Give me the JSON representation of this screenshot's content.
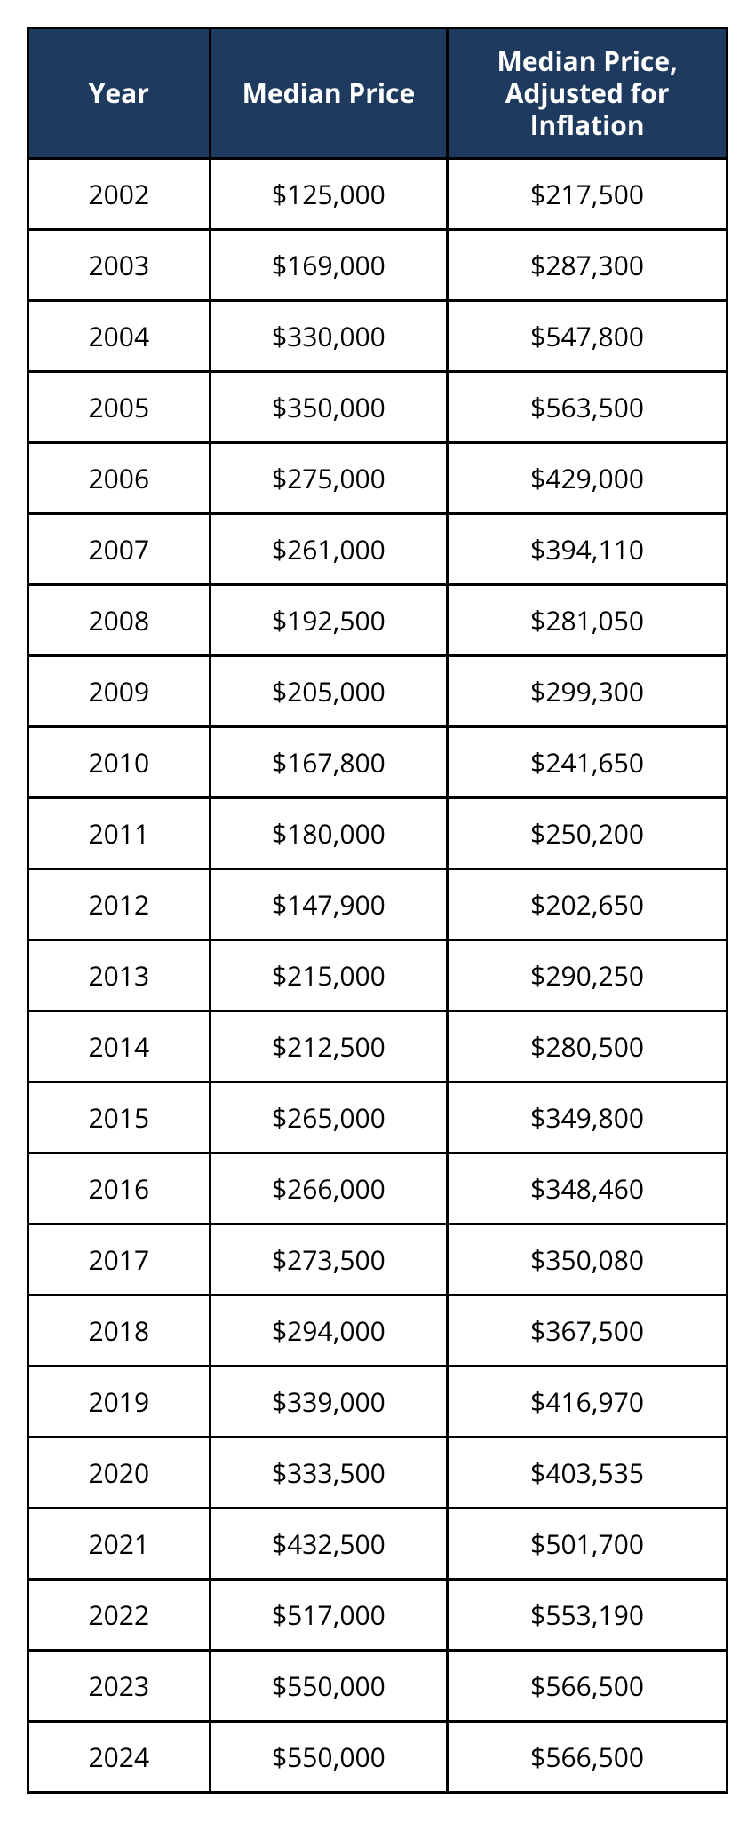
{
  "table": {
    "type": "table",
    "header_bg": "#1e3a5f",
    "header_color": "#ffffff",
    "border_color": "#000000",
    "cell_bg": "#ffffff",
    "cell_color": "#000000",
    "header_fontsize": 30,
    "cell_fontsize": 30,
    "columns": [
      {
        "label": "Year",
        "width_pct": 26,
        "align": "center"
      },
      {
        "label": "Median Price",
        "width_pct": 34,
        "align": "center"
      },
      {
        "label": "Median Price, Adjusted for Inflation",
        "width_pct": 40,
        "align": "center"
      }
    ],
    "rows": [
      [
        "2002",
        "$125,000",
        "$217,500"
      ],
      [
        "2003",
        "$169,000",
        "$287,300"
      ],
      [
        "2004",
        "$330,000",
        "$547,800"
      ],
      [
        "2005",
        "$350,000",
        "$563,500"
      ],
      [
        "2006",
        "$275,000",
        "$429,000"
      ],
      [
        "2007",
        "$261,000",
        "$394,110"
      ],
      [
        "2008",
        "$192,500",
        "$281,050"
      ],
      [
        "2009",
        "$205,000",
        "$299,300"
      ],
      [
        "2010",
        "$167,800",
        "$241,650"
      ],
      [
        "2011",
        "$180,000",
        "$250,200"
      ],
      [
        "2012",
        "$147,900",
        "$202,650"
      ],
      [
        "2013",
        "$215,000",
        "$290,250"
      ],
      [
        "2014",
        "$212,500",
        "$280,500"
      ],
      [
        "2015",
        "$265,000",
        "$349,800"
      ],
      [
        "2016",
        "$266,000",
        "$348,460"
      ],
      [
        "2017",
        "$273,500",
        "$350,080"
      ],
      [
        "2018",
        "$294,000",
        "$367,500"
      ],
      [
        "2019",
        "$339,000",
        "$416,970"
      ],
      [
        "2020",
        "$333,500",
        "$403,535"
      ],
      [
        "2021",
        "$432,500",
        "$501,700"
      ],
      [
        "2022",
        "$517,000",
        "$553,190"
      ],
      [
        "2023",
        "$550,000",
        "$566,500"
      ],
      [
        "2024",
        "$550,000",
        "$566,500"
      ]
    ]
  }
}
